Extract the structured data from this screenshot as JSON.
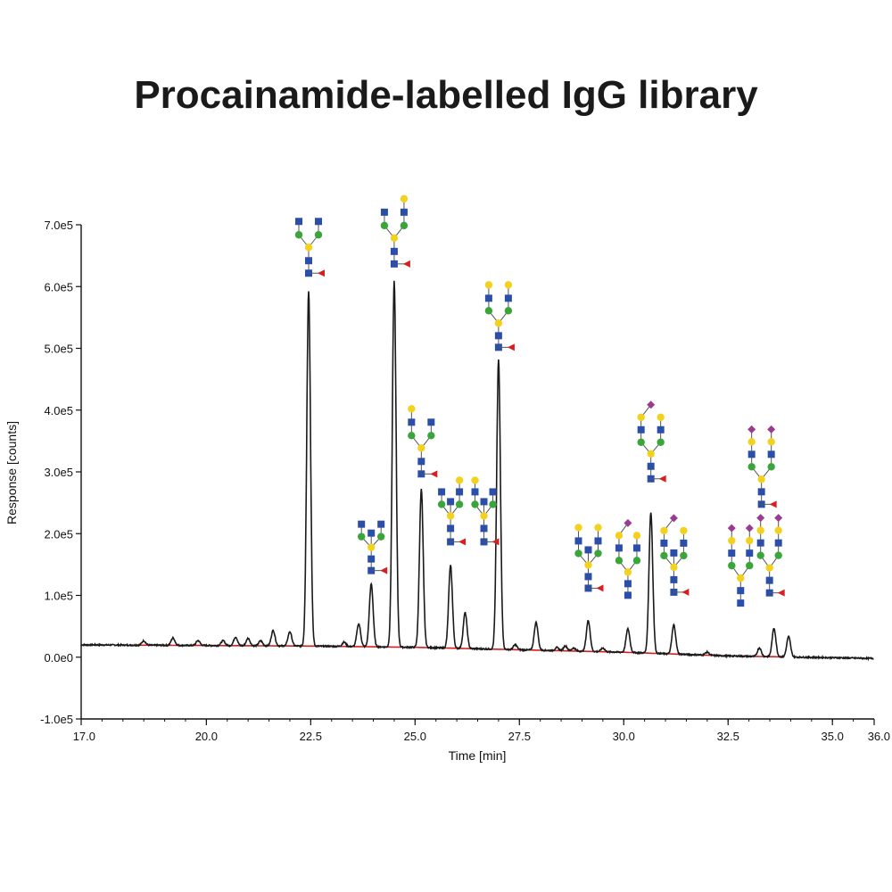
{
  "title": "Procainamide-labelled IgG library",
  "chart_data": {
    "type": "line",
    "title": "Procainamide-labelled IgG library",
    "xlabel": "Time [min]",
    "ylabel": "Response [counts]",
    "xlim": [
      17.0,
      36.0
    ],
    "ylim": [
      -100000,
      700000
    ],
    "x_ticks": [
      17.0,
      20.0,
      22.5,
      25.0,
      27.5,
      30.0,
      32.5,
      35.0,
      36.0
    ],
    "x_tick_labels": [
      "17.0",
      "20.0",
      "22.5",
      "25.0",
      "27.5",
      "30.0",
      "32.5",
      "35.0",
      "36.0"
    ],
    "y_ticks": [
      -100000,
      0,
      100000,
      200000,
      300000,
      400000,
      500000,
      600000,
      700000
    ],
    "y_tick_labels": [
      "-1.0e5",
      "0.0e0",
      "1.0e5",
      "2.0e5",
      "3.0e5",
      "4.0e5",
      "5.0e5",
      "6.0e5",
      "7.0e5"
    ],
    "grid": false,
    "colors": {
      "trace": "#1a1a1a",
      "baseline": "#d42020",
      "glcnac": "#2b4fa8",
      "mannose": "#3aa53a",
      "galactose": "#f2d21e",
      "fucose": "#d42020",
      "sialic": "#9b3b8f"
    },
    "baseline": {
      "name": "",
      "points": [
        [
          17.0,
          20000
        ],
        [
          22.5,
          18000
        ],
        [
          25.0,
          16000
        ],
        [
          27.5,
          12000
        ],
        [
          30.0,
          8000
        ],
        [
          32.5,
          2000
        ],
        [
          36.0,
          -2000
        ]
      ]
    },
    "peaks": [
      {
        "rt": 18.5,
        "height": 7000
      },
      {
        "rt": 19.2,
        "height": 12000
      },
      {
        "rt": 19.8,
        "height": 8000
      },
      {
        "rt": 20.4,
        "height": 8000
      },
      {
        "rt": 20.7,
        "height": 14000
      },
      {
        "rt": 21.0,
        "height": 12000
      },
      {
        "rt": 21.3,
        "height": 8000
      },
      {
        "rt": 21.6,
        "height": 25000
      },
      {
        "rt": 22.0,
        "height": 23000
      },
      {
        "rt": 22.45,
        "height": 575000,
        "glycan": "G0F"
      },
      {
        "rt": 23.3,
        "height": 7000
      },
      {
        "rt": 23.65,
        "height": 37000
      },
      {
        "rt": 23.95,
        "height": 102000,
        "glycan": "G0F+GlcNAc"
      },
      {
        "rt": 24.5,
        "height": 592000,
        "glycan": "G1F"
      },
      {
        "rt": 25.15,
        "height": 256000,
        "glycan": "G1F'"
      },
      {
        "rt": 25.85,
        "height": 134000,
        "glycan": "G1F+GlcNAc"
      },
      {
        "rt": 26.2,
        "height": 58000,
        "glycan": "G1F+GlcNAc'"
      },
      {
        "rt": 27.0,
        "height": 468000,
        "glycan": "G2F"
      },
      {
        "rt": 27.4,
        "height": 8000
      },
      {
        "rt": 27.9,
        "height": 45000
      },
      {
        "rt": 28.4,
        "height": 5000
      },
      {
        "rt": 28.6,
        "height": 8000
      },
      {
        "rt": 28.8,
        "height": 5000
      },
      {
        "rt": 29.15,
        "height": 50000,
        "glycan": "G2F+GlcNAc"
      },
      {
        "rt": 29.5,
        "height": 6000
      },
      {
        "rt": 30.1,
        "height": 38000,
        "glycan": "G1FS1"
      },
      {
        "rt": 30.65,
        "height": 228000,
        "glycan": "G2FS1"
      },
      {
        "rt": 31.2,
        "height": 47000,
        "glycan": "G2FS1+GlcNAc"
      },
      {
        "rt": 32.0,
        "height": 5000
      },
      {
        "rt": 33.25,
        "height": 14000
      },
      {
        "rt": 33.6,
        "height": 46000,
        "glycan": "G2FS2"
      },
      {
        "rt": 33.95,
        "height": 33000,
        "glycan": "G2FS2+GlcNAc"
      }
    ],
    "glycan_annotations": [
      {
        "id": "g0f",
        "anchor": [
          22.45,
          600000.0
        ],
        "units": [
          [
            "sq",
            -11,
            -73
          ],
          [
            "sq",
            11,
            -73
          ],
          [
            "ci",
            -11,
            -58
          ],
          [
            "ci",
            11,
            -58
          ],
          [
            "ci",
            0,
            -44
          ],
          [
            "sq",
            0,
            -29
          ],
          [
            "sq",
            0,
            -15
          ],
          [
            "tri",
            14,
            -15
          ]
        ]
      },
      {
        "id": "g1f",
        "anchor": [
          24.5,
          615000.0
        ],
        "units": [
          [
            "ci",
            11,
            -88
          ],
          [
            "sq",
            -11,
            -73
          ],
          [
            "sq",
            11,
            -73
          ],
          [
            "ci",
            -11,
            -58
          ],
          [
            "ci",
            11,
            -58
          ],
          [
            "ci",
            0,
            -44
          ],
          [
            "sq",
            0,
            -29
          ],
          [
            "sq",
            0,
            -15
          ],
          [
            "tri",
            14,
            -15
          ]
        ]
      },
      {
        "id": "g0fb",
        "anchor": [
          23.95,
          120000.0
        ],
        "units": [
          [
            "sq",
            -11,
            -66
          ],
          [
            "sq",
            11,
            -66
          ],
          [
            "ci",
            -11,
            -52
          ],
          [
            "sq",
            0,
            -56
          ],
          [
            "ci",
            11,
            -52
          ],
          [
            "ci",
            0,
            -40
          ],
          [
            "sq",
            0,
            -27
          ],
          [
            "sq",
            0,
            -14
          ],
          [
            "tri",
            14,
            -14
          ]
        ]
      },
      {
        "id": "g1fa",
        "anchor": [
          25.15,
          275000.0
        ],
        "units": [
          [
            "ci",
            -11,
            -88
          ],
          [
            "sq",
            -11,
            -73
          ],
          [
            "sq",
            11,
            -73
          ],
          [
            "ci",
            -11,
            -58
          ],
          [
            "ci",
            11,
            -58
          ],
          [
            "ci",
            0,
            -44
          ],
          [
            "sq",
            0,
            -29
          ],
          [
            "sq",
            0,
            -15
          ],
          [
            "tri",
            14,
            -15
          ]
        ]
      },
      {
        "id": "g1fb",
        "anchor": [
          25.85,
          155000.0
        ],
        "units": [
          [
            "ci",
            10,
            -91
          ],
          [
            "sq",
            -10,
            -78
          ],
          [
            "sq",
            10,
            -78
          ],
          [
            "ci",
            -10,
            -64
          ],
          [
            "sq",
            0,
            -67
          ],
          [
            "ci",
            10,
            -64
          ],
          [
            "ci",
            0,
            -51
          ],
          [
            "sq",
            0,
            -37
          ],
          [
            "sq",
            0,
            -22
          ],
          [
            "tri",
            13,
            -22
          ]
        ]
      },
      {
        "id": "g1fc",
        "anchor": [
          26.65,
          155000.0
        ],
        "units": [
          [
            "ci",
            -10,
            -91
          ],
          [
            "sq",
            -10,
            -78
          ],
          [
            "sq",
            10,
            -78
          ],
          [
            "ci",
            -10,
            -64
          ],
          [
            "sq",
            0,
            -67
          ],
          [
            "ci",
            10,
            -64
          ],
          [
            "ci",
            0,
            -51
          ],
          [
            "sq",
            0,
            -37
          ],
          [
            "sq",
            0,
            -22
          ],
          [
            "tri",
            13,
            -22
          ]
        ]
      },
      {
        "id": "g2f",
        "anchor": [
          27.0,
          480000.0
        ],
        "units": [
          [
            "ci",
            -11,
            -85
          ],
          [
            "ci",
            11,
            -85
          ],
          [
            "sq",
            -11,
            -70
          ],
          [
            "sq",
            11,
            -70
          ],
          [
            "ci",
            -11,
            -56
          ],
          [
            "ci",
            11,
            -56
          ],
          [
            "ci",
            0,
            -42
          ],
          [
            "sq",
            0,
            -28
          ],
          [
            "sq",
            0,
            -15
          ],
          [
            "tri",
            14,
            -15
          ]
        ]
      },
      {
        "id": "g2fb",
        "anchor": [
          29.15,
          90000.0
        ],
        "units": [
          [
            "ci",
            -11,
            -83
          ],
          [
            "ci",
            11,
            -83
          ],
          [
            "sq",
            -11,
            -68
          ],
          [
            "sq",
            11,
            -68
          ],
          [
            "ci",
            -11,
            -54
          ],
          [
            "sq",
            0,
            -58
          ],
          [
            "ci",
            11,
            -54
          ],
          [
            "ci",
            0,
            -41
          ],
          [
            "sq",
            0,
            -28
          ],
          [
            "sq",
            0,
            -15
          ],
          [
            "tri",
            13,
            -15
          ]
        ]
      },
      {
        "id": "g1fs1",
        "anchor": [
          30.1,
          80000.0
        ],
        "units": [
          [
            "dia",
            0,
            -95
          ],
          [
            "ci",
            -10,
            -81
          ],
          [
            "ci",
            10,
            -81
          ],
          [
            "sq",
            -10,
            -67
          ],
          [
            "sq",
            10,
            -67
          ],
          [
            "ci",
            -10,
            -53
          ],
          [
            "ci",
            10,
            -53
          ],
          [
            "ci",
            0,
            -40
          ],
          [
            "sq",
            0,
            -27
          ],
          [
            "sq",
            0,
            -14
          ]
        ]
      },
      {
        "id": "g2fs1",
        "anchor": [
          30.65,
          270000.0
        ],
        "units": [
          [
            "dia",
            0,
            -96
          ],
          [
            "ci",
            -11,
            -82
          ],
          [
            "ci",
            11,
            -82
          ],
          [
            "sq",
            -11,
            -68
          ],
          [
            "sq",
            11,
            -68
          ],
          [
            "ci",
            -11,
            -54
          ],
          [
            "ci",
            11,
            -54
          ],
          [
            "ci",
            0,
            -41
          ],
          [
            "sq",
            0,
            -27
          ],
          [
            "sq",
            0,
            -13
          ],
          [
            "tri",
            13,
            -13
          ]
        ]
      },
      {
        "id": "g2fs1b",
        "anchor": [
          31.2,
          85000.0
        ],
        "units": [
          [
            "dia",
            0,
            -97
          ],
          [
            "ci",
            -11,
            -83
          ],
          [
            "ci",
            11,
            -83
          ],
          [
            "sq",
            -11,
            -69
          ],
          [
            "sq",
            11,
            -69
          ],
          [
            "ci",
            -11,
            -55
          ],
          [
            "sq",
            0,
            -58
          ],
          [
            "ci",
            11,
            -55
          ],
          [
            "ci",
            0,
            -42
          ],
          [
            "sq",
            0,
            -28
          ],
          [
            "sq",
            0,
            -14
          ],
          [
            "tri",
            13,
            -14
          ]
        ]
      },
      {
        "id": "g2fs2",
        "anchor": [
          33.3,
          210000.0
        ],
        "units": [
          [
            "dia",
            -11,
            -110
          ],
          [
            "dia",
            11,
            -110
          ],
          [
            "ci",
            -11,
            -96
          ],
          [
            "ci",
            11,
            -96
          ],
          [
            "sq",
            -11,
            -82
          ],
          [
            "sq",
            11,
            -82
          ],
          [
            "ci",
            -11,
            -68
          ],
          [
            "ci",
            11,
            -68
          ],
          [
            "ci",
            0,
            -54
          ],
          [
            "sq",
            0,
            -40
          ],
          [
            "sq",
            0,
            -26
          ],
          [
            "tri",
            13,
            -26
          ]
        ]
      },
      {
        "id": "g2fs2b",
        "anchor": [
          32.8,
          50000.0
        ],
        "units": [
          [
            "dia",
            -10,
            -110
          ],
          [
            "dia",
            10,
            -110
          ],
          [
            "ci",
            -10,
            -96
          ],
          [
            "ci",
            10,
            -96
          ],
          [
            "sq",
            -10,
            -82
          ],
          [
            "sq",
            10,
            -82
          ],
          [
            "ci",
            -10,
            -68
          ],
          [
            "ci",
            10,
            -68
          ],
          [
            "ci",
            0,
            -54
          ],
          [
            "sq",
            0,
            -40
          ],
          [
            "sq",
            0,
            -26
          ]
        ]
      },
      {
        "id": "g2fs2c",
        "anchor": [
          33.45,
          55000.0
        ],
        "units": [
          [
            "dia",
            -8,
            -118
          ],
          [
            "dia",
            12,
            -118
          ],
          [
            "ci",
            -8,
            -104
          ],
          [
            "ci",
            12,
            -104
          ],
          [
            "sq",
            -8,
            -90
          ],
          [
            "sq",
            12,
            -90
          ],
          [
            "ci",
            -8,
            -76
          ],
          [
            "ci",
            12,
            -76
          ],
          [
            "ci",
            2,
            -62
          ],
          [
            "sq",
            2,
            -48
          ],
          [
            "sq",
            2,
            -34
          ],
          [
            "tri",
            15,
            -34
          ]
        ]
      }
    ]
  }
}
